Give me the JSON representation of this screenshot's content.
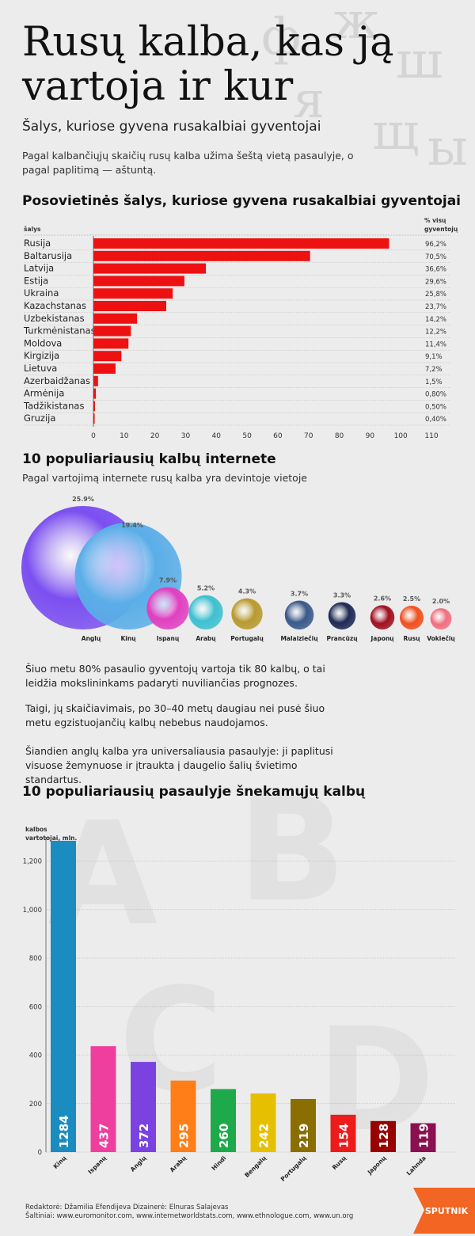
{
  "header": {
    "title": "Rusų kalba, kas ją vartoja ir kur",
    "subtitle": "Šalys, kuriose gyvena rusakalbiai gyventojai",
    "intro": "Pagal kalbančiųjų skaičių rusų kalba užima šeštą vietą pasaulyje, o pagal paplitimą — aštuntą."
  },
  "section1": {
    "title": "Posovietinės šalys, kuriose gyvena rusakalbiai gyventojai",
    "col_left": "šalys",
    "col_right": "% visų gyventojų"
  },
  "section2": {
    "title": "10 populiariausių kalbų internete",
    "note": "Pagal vartojimą internete rusų kalba yra devintoje vietoje"
  },
  "paragraphs": [
    "Šiuo metu 80% pasaulio gyventojų vartoja tik 80 kalbų, o tai leidžia mokslininkams padaryti nuviliančias prognozes.",
    "Taigi, jų skaičiavimais, po 30–40 metų daugiau nei pusė šiuo metu egzistuojančių kalbų nebebus naudojamos.",
    "Šiandien anglų kalba yra universaliausia pasaulyje: ji paplitusi visuose žemynuose ir įtraukta į daugelio šalių švietimo standartus."
  ],
  "section3": {
    "title": "10 populiariausių pasaulyje šnekamųjų kalbų"
  },
  "footer": {
    "line1": "Redaktorė: Džamilia Efendijeva Dizainerė: Elnuras Salajevas",
    "line2": "Šaltiniai: www.euromonitor.com, www.internetworldstats.com, www.ethnologue.com, www.un.org"
  },
  "brand": {
    "name": "SPUTNIK",
    "color": "#f26522"
  },
  "chart_data": [
    {
      "type": "bar",
      "orientation": "horizontal",
      "title": "Posovietinės šalys, kuriose gyvena rusakalbiai gyventojai",
      "categories": [
        "Rusija",
        "Baltarusija",
        "Latvija",
        "Estija",
        "Ukraina",
        "Kazachstanas",
        "Uzbekistanas",
        "Turkmėnistanas",
        "Moldova",
        "Kirgizija",
        "Lietuva",
        "Azerbaidžanas",
        "Armėnija",
        "Tadžikistanas",
        "Gruzija"
      ],
      "values": [
        96.2,
        70.5,
        36.6,
        29.6,
        25.8,
        23.7,
        14.2,
        12.2,
        11.4,
        9.1,
        7.2,
        1.5,
        0.8,
        0.5,
        0.4
      ],
      "value_labels": [
        "96,2%",
        "70,5%",
        "36,6%",
        "29,6%",
        "25,8%",
        "23,7%",
        "14,2%",
        "12,2%",
        "11,4%",
        "9,1%",
        "7,2%",
        "1,5%",
        "0,80%",
        "0,50%",
        "0,40%"
      ],
      "xticks": [
        "0",
        "10",
        "20",
        "30",
        "40",
        "50",
        "60",
        "70",
        "80",
        "90",
        "100",
        "110"
      ],
      "xlim": [
        0,
        110
      ],
      "color": "#ee1111"
    },
    {
      "type": "scatter",
      "variant": "bubble",
      "title": "10 populiariausių kalbų internete",
      "categories": [
        "Anglų",
        "Kinų",
        "Ispanų",
        "Arabų",
        "Portugalų",
        "Malaiziečių",
        "Prancūzų",
        "Japonų",
        "Rusų",
        "Vokiečių"
      ],
      "values": [
        25.9,
        19.4,
        7.9,
        5.2,
        4.3,
        3.7,
        3.3,
        2.6,
        2.5,
        2.0
      ],
      "value_labels": [
        "25.9%",
        "19.4%",
        "7.9%",
        "5.2%",
        "4.3%",
        "3.7%",
        "3.3%",
        "2.6%",
        "2.5%",
        "2.0%"
      ],
      "colors": [
        "#7b4ff0",
        "#5aaee8",
        "#e040c0",
        "#3ec0d0",
        "#b89a30",
        "#3a5a8a",
        "#1e2a55",
        "#a01020",
        "#f05020",
        "#f07080"
      ]
    },
    {
      "type": "bar",
      "orientation": "vertical",
      "title": "10 populiariausių pasaulyje šnekamųjų kalbų",
      "ylabel": "kalbos vartotojai, mln.",
      "categories": [
        "Kinų",
        "Ispanų",
        "Anglų",
        "Arabų",
        "Hindi",
        "Bengalų",
        "Portugalų",
        "Rusų",
        "Japonų",
        "Lahnda"
      ],
      "values": [
        1284,
        437,
        372,
        295,
        260,
        242,
        219,
        154,
        128,
        119
      ],
      "yticks": [
        "0",
        "200",
        "400",
        "600",
        "800",
        "1,000",
        "1,200"
      ],
      "ylim": [
        0,
        1300
      ],
      "colors": [
        "#1a8cc0",
        "#ee3f9e",
        "#7a42e0",
        "#ff7e18",
        "#1eaa4a",
        "#e6c000",
        "#8a6e00",
        "#ee1b1b",
        "#990000",
        "#8a1050"
      ]
    }
  ]
}
